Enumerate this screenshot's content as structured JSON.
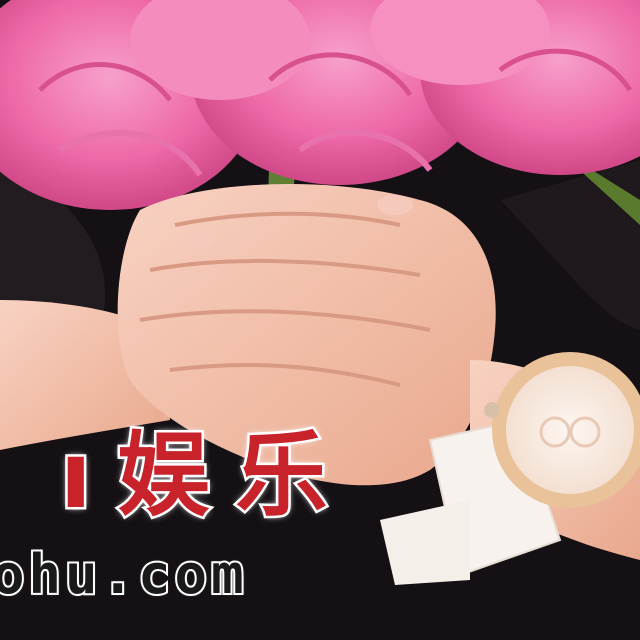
{
  "watermark": {
    "chinese": "娱乐",
    "chinese_partial_lead": "ı",
    "url": "hu.com",
    "url_partial_lead": "o"
  },
  "colors": {
    "background": "#141014",
    "peony_pink": "#f06aa8",
    "skin": "#f3c1ac",
    "watch_strap": "#f7f2ee",
    "watch_bezel": "#e9c29a",
    "watermark_red": "#c8222a"
  }
}
